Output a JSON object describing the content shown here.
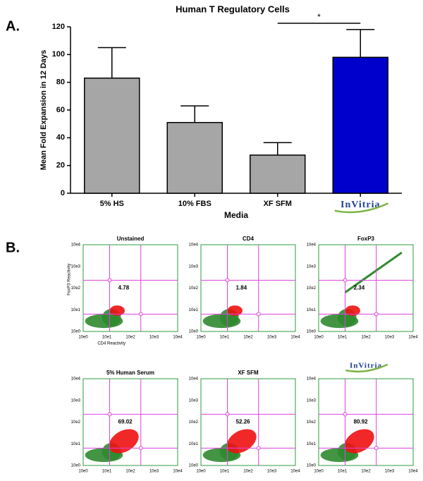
{
  "panel_labels": [
    "A.",
    "B."
  ],
  "chart_data": {
    "type": "bar",
    "title": "Human T Regulatory Cells",
    "ylabel": "Mean Fold Expansion in 12 Days",
    "xlabel": "Media",
    "categories": [
      "5% HS",
      "10% FBS",
      "XF SFM",
      "InVitria"
    ],
    "values": [
      83,
      51,
      27.5,
      98
    ],
    "errors": [
      22,
      12,
      9,
      20
    ],
    "colors": [
      "#a6a6a6",
      "#a6a6a6",
      "#a6a6a6",
      "#0000cc"
    ],
    "ylim": [
      0,
      120
    ],
    "yticks": [
      0,
      20,
      40,
      60,
      80,
      100,
      120
    ],
    "annotation": "*"
  },
  "flow": {
    "ticks": [
      "10e0",
      "10e1",
      "10e2",
      "10e3",
      "10e4"
    ],
    "xlabel": "CD4 Reactivity",
    "ylabel": "FoxP3 Reactivity",
    "panels": [
      {
        "title": "Unstained",
        "percent": 4.78
      },
      {
        "title": "CD4",
        "percent": 1.84
      },
      {
        "title": "FoxP3",
        "percent": 2.34
      },
      {
        "title": "5% Human Serum",
        "percent": 69.02
      },
      {
        "title": "XF SFM",
        "percent": 52.26
      },
      {
        "title": "InVitria",
        "percent": 80.92
      }
    ]
  }
}
